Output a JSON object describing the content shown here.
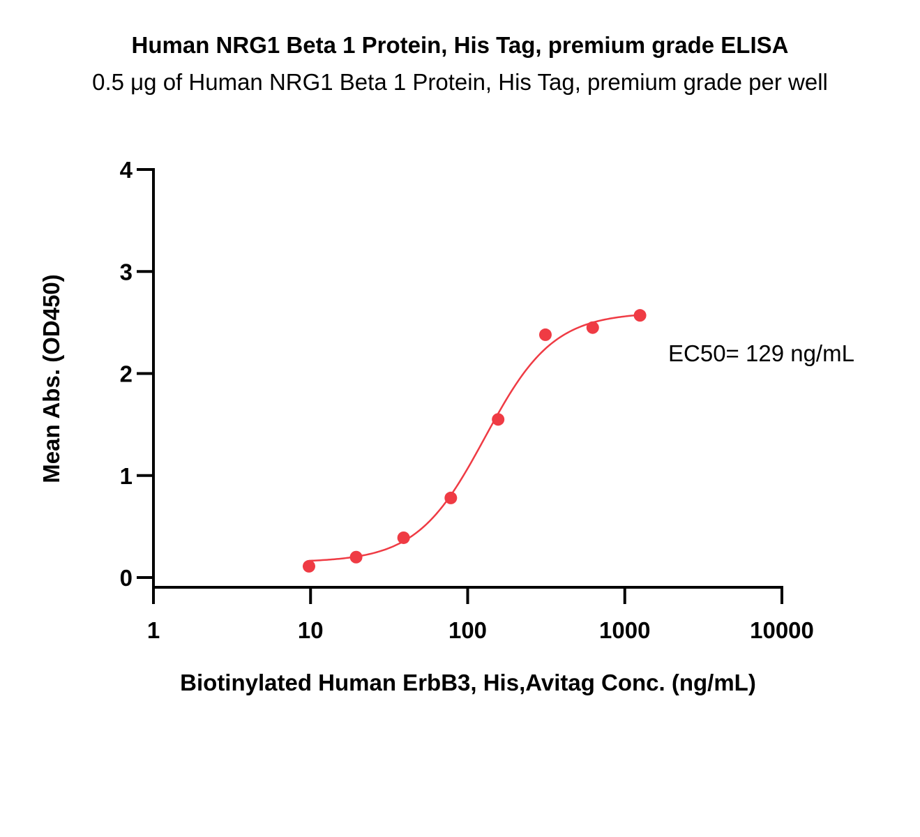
{
  "chart_data": {
    "type": "scatter",
    "title": "Human NRG1 Beta 1 Protein, His Tag, premium grade ELISA",
    "subtitle": "0.5 μg of Human NRG1 Beta 1 Protein, His Tag, premium grade per well",
    "xlabel": "Biotinylated Human ErbB3, His,Avitag Conc. (ng/mL)",
    "ylabel": "Mean Abs. (OD450)",
    "x_scale": "log10",
    "xlim": [
      1,
      10000
    ],
    "ylim": [
      0,
      4
    ],
    "x_ticks": [
      1,
      10,
      100,
      1000,
      10000
    ],
    "x_tick_labels": [
      "1",
      "10",
      "100",
      "1000",
      "10000"
    ],
    "y_ticks": [
      0,
      1,
      2,
      3,
      4
    ],
    "y_tick_labels": [
      "0",
      "1",
      "2",
      "3",
      "4"
    ],
    "grid": false,
    "color": "#ef3b44",
    "series": [
      {
        "x": [
          9.77,
          19.5,
          39.1,
          78.1,
          156.3,
          312.5,
          625,
          1250
        ],
        "y": [
          0.11,
          0.2,
          0.39,
          0.78,
          1.55,
          2.38,
          2.45,
          2.57
        ]
      }
    ],
    "fit_curve": {
      "model": "4PL",
      "bottom": 0.15,
      "top": 2.6,
      "ec50": 129,
      "hill": 2.0
    },
    "annotation": "EC50= 129 ng/mL"
  }
}
